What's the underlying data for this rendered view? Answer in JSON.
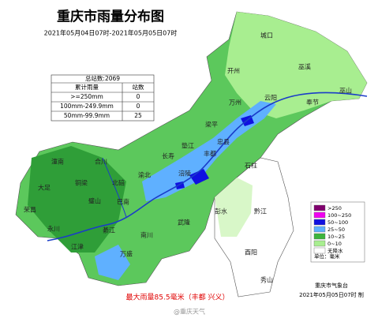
{
  "title": "重庆市雨量分布图",
  "subtitle": "2021年05月04日07时-2021年05月05日07时",
  "stats": {
    "total": "总站数:2069",
    "headers": [
      "累计雨量",
      "站数"
    ],
    "rows": [
      [
        ">=250mm",
        "0"
      ],
      [
        "100mm-249.9mm",
        "0"
      ],
      [
        "50mm-99.9mm",
        "25"
      ]
    ]
  },
  "legend": {
    "items": [
      {
        "label": ">250",
        "color": "#80006e"
      },
      {
        "label": "100~250",
        "color": "#f000f0"
      },
      {
        "label": "50~100",
        "color": "#1010e0"
      },
      {
        "label": "25~50",
        "color": "#5fb0ff"
      },
      {
        "label": "10~25",
        "color": "#3cb43c"
      },
      {
        "label": "0~10",
        "color": "#a8ee90"
      },
      {
        "label": "无降水",
        "color": "#ffffff"
      }
    ],
    "unit": "单位：毫米"
  },
  "places": [
    "城口",
    "巫溪",
    "开州",
    "云阳",
    "奉节",
    "巫山",
    "万州",
    "梁平",
    "垫江",
    "忠县",
    "石柱",
    "丰都",
    "长寿",
    "涪陵",
    "武隆",
    "彭水",
    "黔江",
    "酉阳",
    "秀山",
    "南川",
    "綦江",
    "江津",
    "万盛",
    "巴南",
    "渝北",
    "北碚",
    "合川",
    "潼南",
    "铜梁",
    "大足",
    "荣昌",
    "永川",
    "璧山"
  ],
  "note": "最大雨量85.5毫米（丰都 兴义）",
  "footer": {
    "org": "重庆市气象台",
    "time": "2021年05月05日07时 制"
  },
  "watermark": "@重庆天气"
}
